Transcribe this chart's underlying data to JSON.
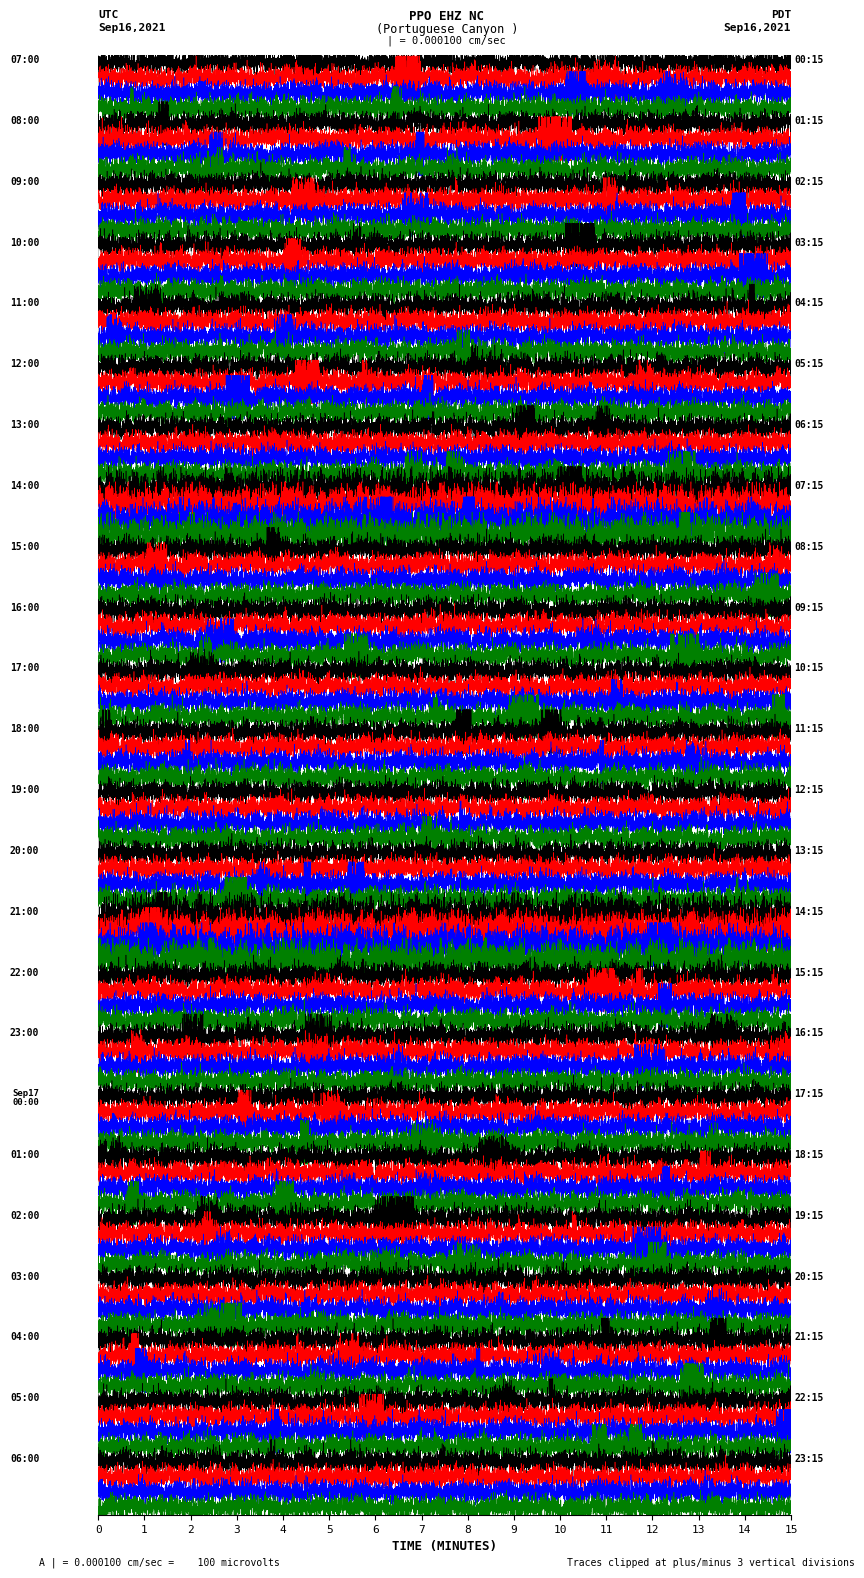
{
  "title_line1": "PPO EHZ NC",
  "title_line2": "(Portuguese Canyon )",
  "title_line3": "| = 0.000100 cm/sec",
  "left_header_line1": "UTC",
  "left_header_line2": "Sep16,2021",
  "right_header_line1": "PDT",
  "right_header_line2": "Sep16,2021",
  "xlabel": "TIME (MINUTES)",
  "footer_left": "A | = 0.000100 cm/sec =    100 microvolts",
  "footer_right": "Traces clipped at plus/minus 3 vertical divisions",
  "utc_labels": [
    "07:00",
    "08:00",
    "09:00",
    "10:00",
    "11:00",
    "12:00",
    "13:00",
    "14:00",
    "15:00",
    "16:00",
    "17:00",
    "18:00",
    "19:00",
    "20:00",
    "21:00",
    "22:00",
    "23:00",
    "Sep17\n00:00",
    "01:00",
    "02:00",
    "03:00",
    "04:00",
    "05:00",
    "06:00"
  ],
  "pdt_labels": [
    "00:15",
    "01:15",
    "02:15",
    "03:15",
    "04:15",
    "05:15",
    "06:15",
    "07:15",
    "08:15",
    "09:15",
    "10:15",
    "11:15",
    "12:15",
    "13:15",
    "14:15",
    "15:15",
    "16:15",
    "17:15",
    "18:15",
    "19:15",
    "20:15",
    "21:15",
    "22:15",
    "23:15"
  ],
  "n_rows": 24,
  "n_traces_per_row": 4,
  "colors": [
    "black",
    "red",
    "blue",
    "green"
  ],
  "background_color": "white",
  "xmin": 0,
  "xmax": 15,
  "xticks": [
    0,
    1,
    2,
    3,
    4,
    5,
    6,
    7,
    8,
    9,
    10,
    11,
    12,
    13,
    14,
    15
  ],
  "figwidth": 8.5,
  "figheight": 16.13,
  "dpi": 100
}
